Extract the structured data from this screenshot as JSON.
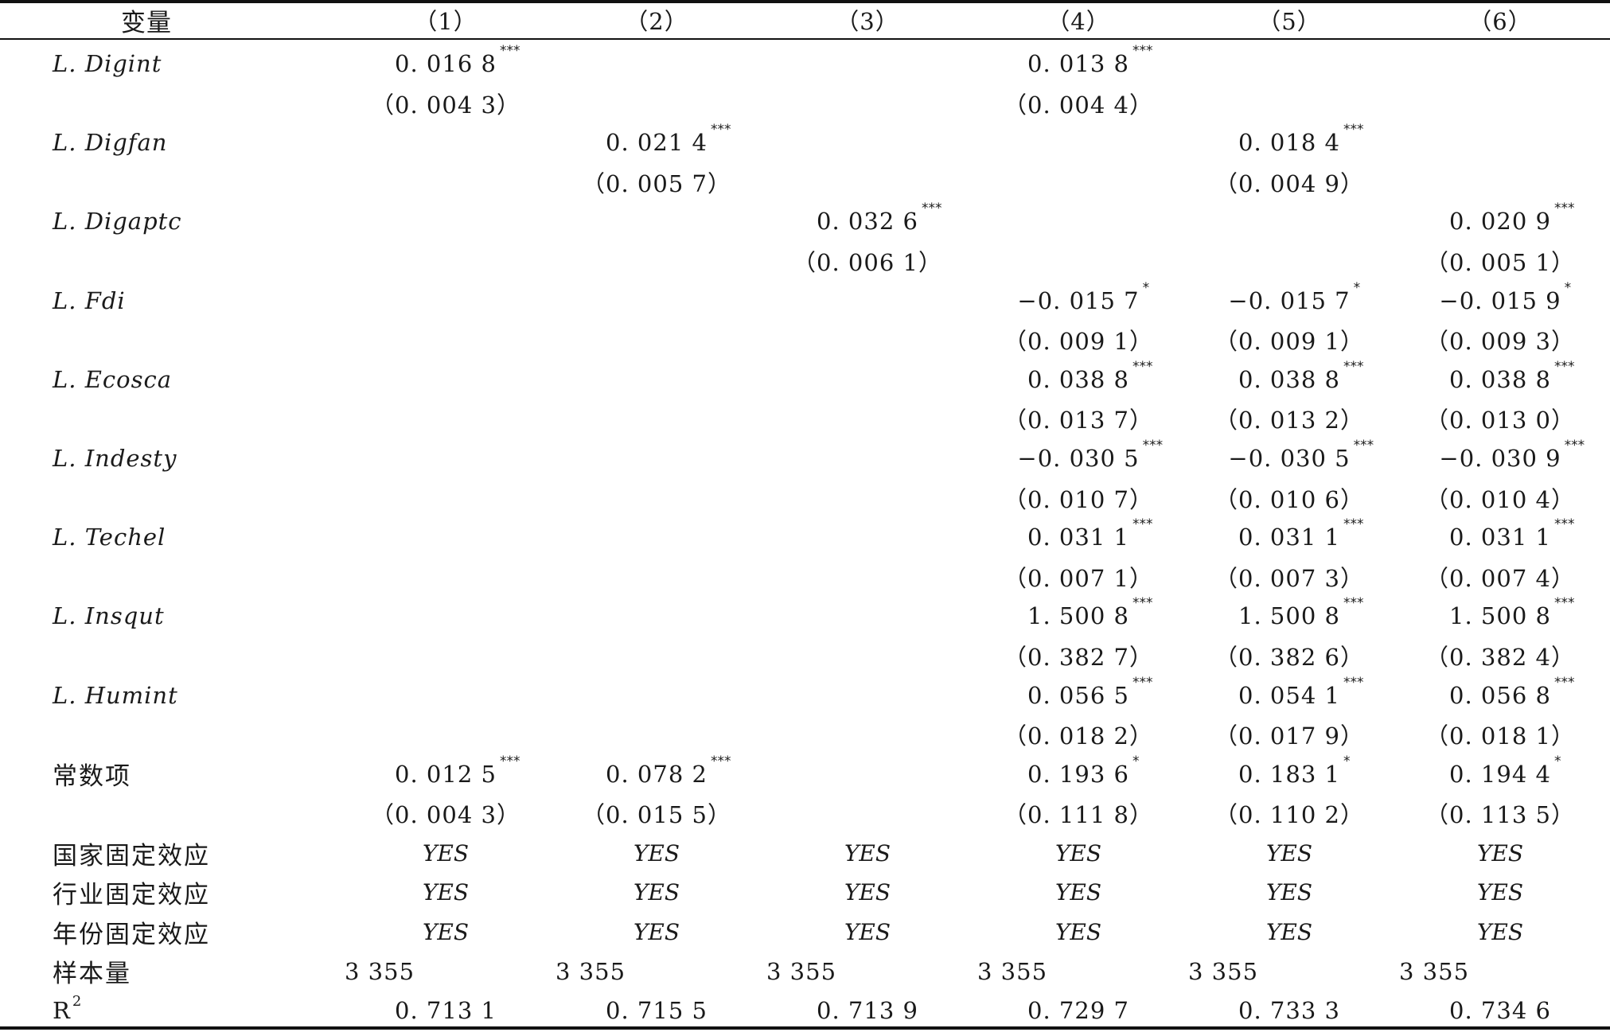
{
  "table": {
    "header": {
      "label": "变量",
      "columns": [
        "（1）",
        "（2）",
        "（3）",
        "（4）",
        "（5）",
        "（6）"
      ]
    },
    "rows": [
      {
        "label": "L. Digint",
        "cells": [
          {
            "v": "0. 016 8",
            "s": "***"
          },
          null,
          null,
          {
            "v": "0. 013 8",
            "s": "***"
          },
          null,
          null
        ]
      },
      {
        "label": "",
        "cells": [
          {
            "v": "（0. 004 3）",
            "s": ""
          },
          null,
          null,
          {
            "v": "（0. 004 4）",
            "s": ""
          },
          null,
          null
        ]
      },
      {
        "label": "L. Digfan",
        "cells": [
          null,
          {
            "v": "0. 021 4",
            "s": "***"
          },
          null,
          null,
          {
            "v": "0. 018 4",
            "s": "***"
          },
          null
        ]
      },
      {
        "label": "",
        "cells": [
          null,
          {
            "v": "（0. 005 7）",
            "s": ""
          },
          null,
          null,
          {
            "v": "（0. 004 9）",
            "s": ""
          },
          null
        ]
      },
      {
        "label": "L. Digaptc",
        "cells": [
          null,
          null,
          {
            "v": "0. 032 6",
            "s": "***"
          },
          null,
          null,
          {
            "v": "0. 020 9",
            "s": "***"
          }
        ]
      },
      {
        "label": "",
        "cells": [
          null,
          null,
          {
            "v": "（0. 006 1）",
            "s": ""
          },
          null,
          null,
          {
            "v": "（0. 005 1）",
            "s": ""
          }
        ]
      },
      {
        "label": "L. Fdi",
        "cells": [
          null,
          null,
          null,
          {
            "v": "−0. 015 7",
            "s": "*"
          },
          {
            "v": "−0. 015 7",
            "s": "*"
          },
          {
            "v": "−0. 015 9",
            "s": "*"
          }
        ]
      },
      {
        "label": "",
        "cells": [
          null,
          null,
          null,
          {
            "v": "（0. 009 1）",
            "s": ""
          },
          {
            "v": "（0. 009 1）",
            "s": ""
          },
          {
            "v": "（0. 009 3）",
            "s": ""
          }
        ]
      },
      {
        "label": "L. Ecosca",
        "cells": [
          null,
          null,
          null,
          {
            "v": "0. 038 8",
            "s": "***"
          },
          {
            "v": "0. 038 8",
            "s": "***"
          },
          {
            "v": "0. 038 8",
            "s": "***"
          }
        ]
      },
      {
        "label": "",
        "cells": [
          null,
          null,
          null,
          {
            "v": "（0. 013 7）",
            "s": ""
          },
          {
            "v": "（0. 013 2）",
            "s": ""
          },
          {
            "v": "（0. 013 0）",
            "s": ""
          }
        ]
      },
      {
        "label": "L. Indesty",
        "cells": [
          null,
          null,
          null,
          {
            "v": "−0. 030 5",
            "s": "***"
          },
          {
            "v": "−0. 030 5",
            "s": "***"
          },
          {
            "v": "−0. 030 9",
            "s": "***"
          }
        ]
      },
      {
        "label": "",
        "cells": [
          null,
          null,
          null,
          {
            "v": "（0. 010 7）",
            "s": ""
          },
          {
            "v": "（0. 010 6）",
            "s": ""
          },
          {
            "v": "（0. 010 4）",
            "s": ""
          }
        ]
      },
      {
        "label": "L. Techel",
        "cells": [
          null,
          null,
          null,
          {
            "v": "0. 031 1",
            "s": "***"
          },
          {
            "v": "0. 031 1",
            "s": "***"
          },
          {
            "v": "0. 031 1",
            "s": "***"
          }
        ]
      },
      {
        "label": "",
        "cells": [
          null,
          null,
          null,
          {
            "v": "（0. 007 1）",
            "s": ""
          },
          {
            "v": "（0. 007 3）",
            "s": ""
          },
          {
            "v": "（0. 007 4）",
            "s": ""
          }
        ]
      },
      {
        "label": "L. Insqut",
        "cells": [
          null,
          null,
          null,
          {
            "v": "1. 500 8",
            "s": "***"
          },
          {
            "v": "1. 500 8",
            "s": "***"
          },
          {
            "v": "1. 500 8",
            "s": "***"
          }
        ]
      },
      {
        "label": "",
        "cells": [
          null,
          null,
          null,
          {
            "v": "（0. 382 7）",
            "s": ""
          },
          {
            "v": "（0. 382 6）",
            "s": ""
          },
          {
            "v": "（0. 382 4）",
            "s": ""
          }
        ]
      },
      {
        "label": "L. Humint",
        "cells": [
          null,
          null,
          null,
          {
            "v": "0. 056 5",
            "s": "***"
          },
          {
            "v": "0. 054 1",
            "s": "***"
          },
          {
            "v": "0. 056 8",
            "s": "***"
          }
        ]
      },
      {
        "label": "",
        "cells": [
          null,
          null,
          null,
          {
            "v": "（0. 018 2）",
            "s": ""
          },
          {
            "v": "（0. 017 9）",
            "s": ""
          },
          {
            "v": "（0. 018 1）",
            "s": ""
          }
        ]
      },
      {
        "label": "常数项",
        "cells": [
          {
            "v": "0. 012 5",
            "s": "***"
          },
          {
            "v": "0. 078 2",
            "s": "***"
          },
          null,
          {
            "v": "0. 193 6",
            "s": "*"
          },
          {
            "v": "0. 183 1",
            "s": "*"
          },
          {
            "v": "0. 194 4",
            "s": "*"
          }
        ]
      },
      {
        "label": "",
        "cells": [
          {
            "v": "（0. 004 3）",
            "s": ""
          },
          {
            "v": "（0. 015 5）",
            "s": ""
          },
          null,
          {
            "v": "（0. 111 8）",
            "s": ""
          },
          {
            "v": "（0. 110 2）",
            "s": ""
          },
          {
            "v": "（0. 113 5）",
            "s": ""
          }
        ]
      }
    ],
    "fixed_effects": [
      {
        "label": "国家固定效应",
        "values": [
          "YES",
          "YES",
          "YES",
          "YES",
          "YES",
          "YES"
        ]
      },
      {
        "label": "行业固定效应",
        "values": [
          "YES",
          "YES",
          "YES",
          "YES",
          "YES",
          "YES"
        ]
      },
      {
        "label": "年份固定效应",
        "values": [
          "YES",
          "YES",
          "YES",
          "YES",
          "YES",
          "YES"
        ]
      }
    ],
    "sample": {
      "label": "样本量",
      "values": [
        "3 355",
        "3 355",
        "3 355",
        "3 355",
        "3 355",
        "3 355"
      ]
    },
    "r2": {
      "label": "R",
      "sup": "2",
      "values": [
        "0. 713 1",
        "0. 715 5",
        "0. 713 9",
        "0. 729 7",
        "0. 733 3",
        "0. 734 6"
      ]
    }
  }
}
